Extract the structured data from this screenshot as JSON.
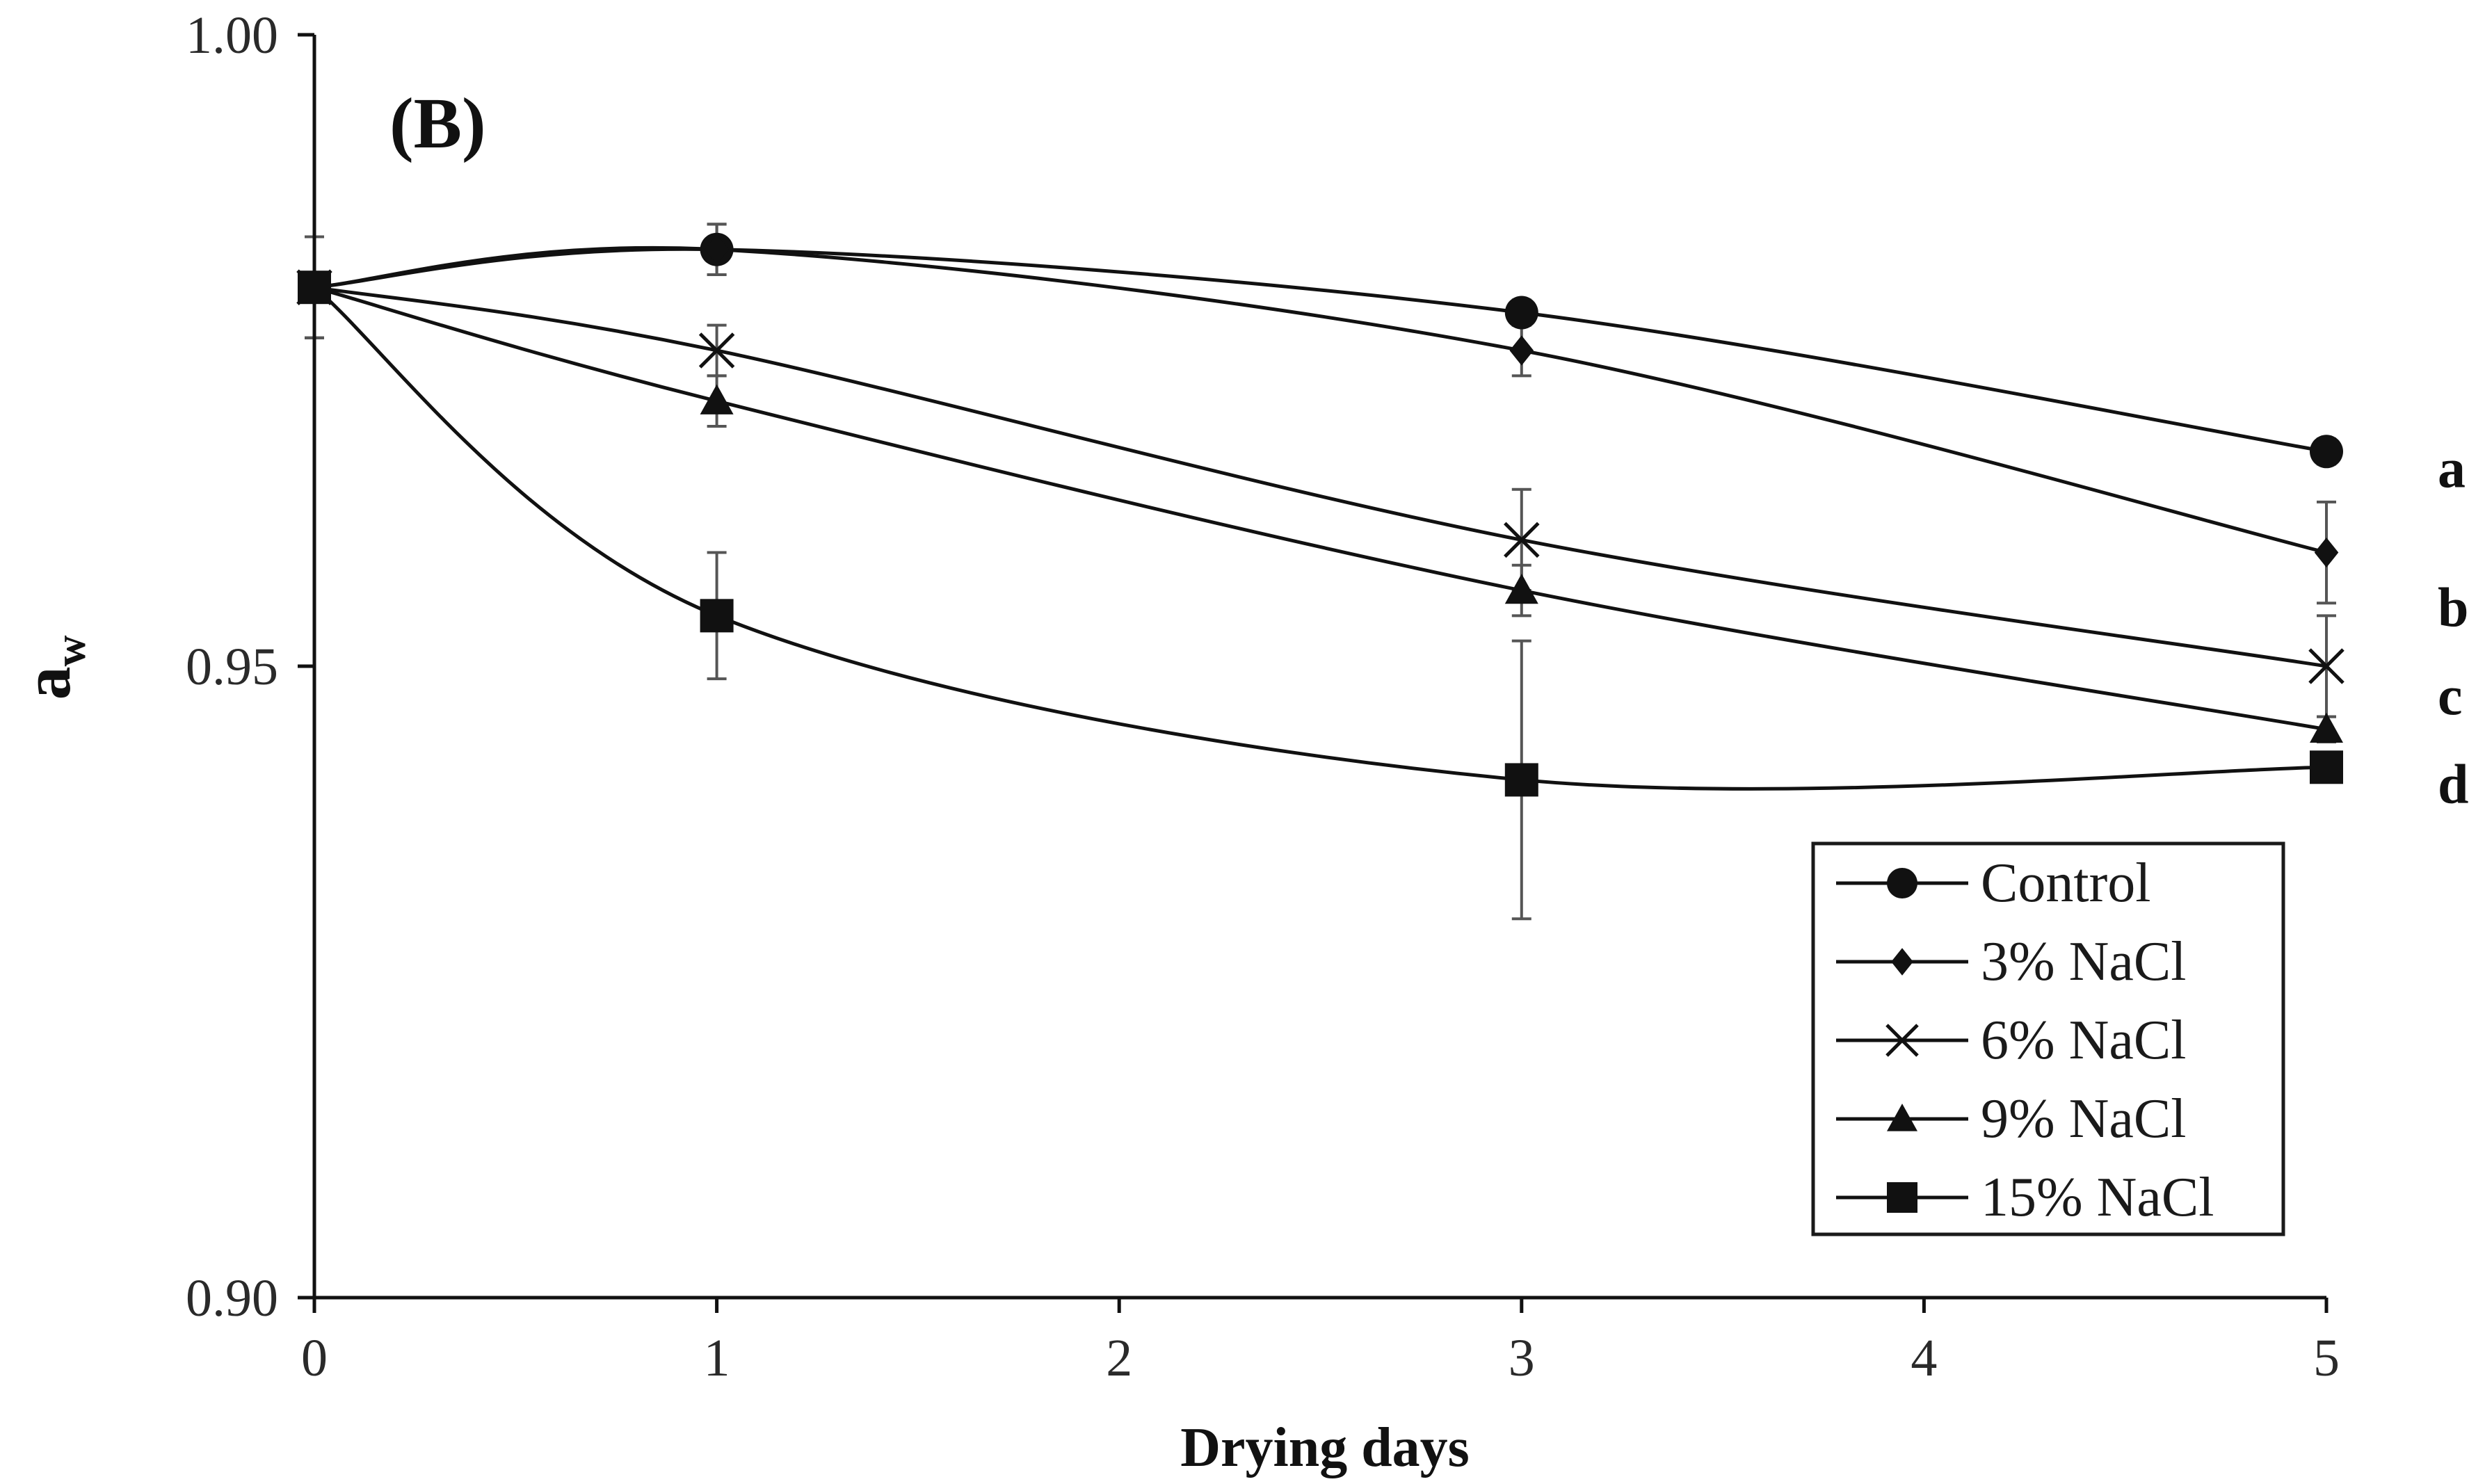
{
  "chart_data": {
    "type": "line",
    "panel_label": "(B)",
    "title": "",
    "xlabel": "Drying days",
    "ylabel_main": "a",
    "ylabel_sub": "w",
    "xlim": [
      0,
      5
    ],
    "ylim": [
      0.9,
      1.0
    ],
    "x_ticks": [
      "0",
      "1",
      "2",
      "3",
      "4",
      "5"
    ],
    "y_ticks": [
      "0.90",
      "0.95",
      "1.00"
    ],
    "x": [
      0,
      1,
      3,
      5
    ],
    "series": [
      {
        "name": "Control",
        "marker": "circle",
        "values": [
          0.98,
          0.983,
          0.978,
          0.967
        ],
        "errors": [
          0.004,
          0.002,
          0.001,
          0.001
        ]
      },
      {
        "name": "3% NaCl",
        "marker": "diamond",
        "values": [
          0.98,
          0.983,
          0.975,
          0.959
        ],
        "errors": [
          0.004,
          0.002,
          0.002,
          0.004
        ]
      },
      {
        "name": "6% NaCl",
        "marker": "x",
        "values": [
          0.98,
          0.975,
          0.96,
          0.95
        ],
        "errors": [
          0.004,
          0.002,
          0.004,
          0.004
        ]
      },
      {
        "name": "9% NaCl",
        "marker": "triangle",
        "values": [
          0.98,
          0.971,
          0.956,
          0.945
        ],
        "errors": [
          0.004,
          0.002,
          0.002,
          0.001
        ]
      },
      {
        "name": "15% NaCl",
        "marker": "square",
        "values": [
          0.98,
          0.954,
          0.941,
          0.942
        ],
        "errors": [
          0.004,
          0.005,
          0.011,
          0.001
        ]
      }
    ],
    "group_letters": [
      {
        "letter": "a",
        "value": 0.9655
      },
      {
        "letter": "b",
        "value": 0.9545
      },
      {
        "letter": "c",
        "value": 0.9475
      },
      {
        "letter": "d",
        "value": 0.9405
      }
    ],
    "legend_position": "bottom-right",
    "grid": false
  }
}
